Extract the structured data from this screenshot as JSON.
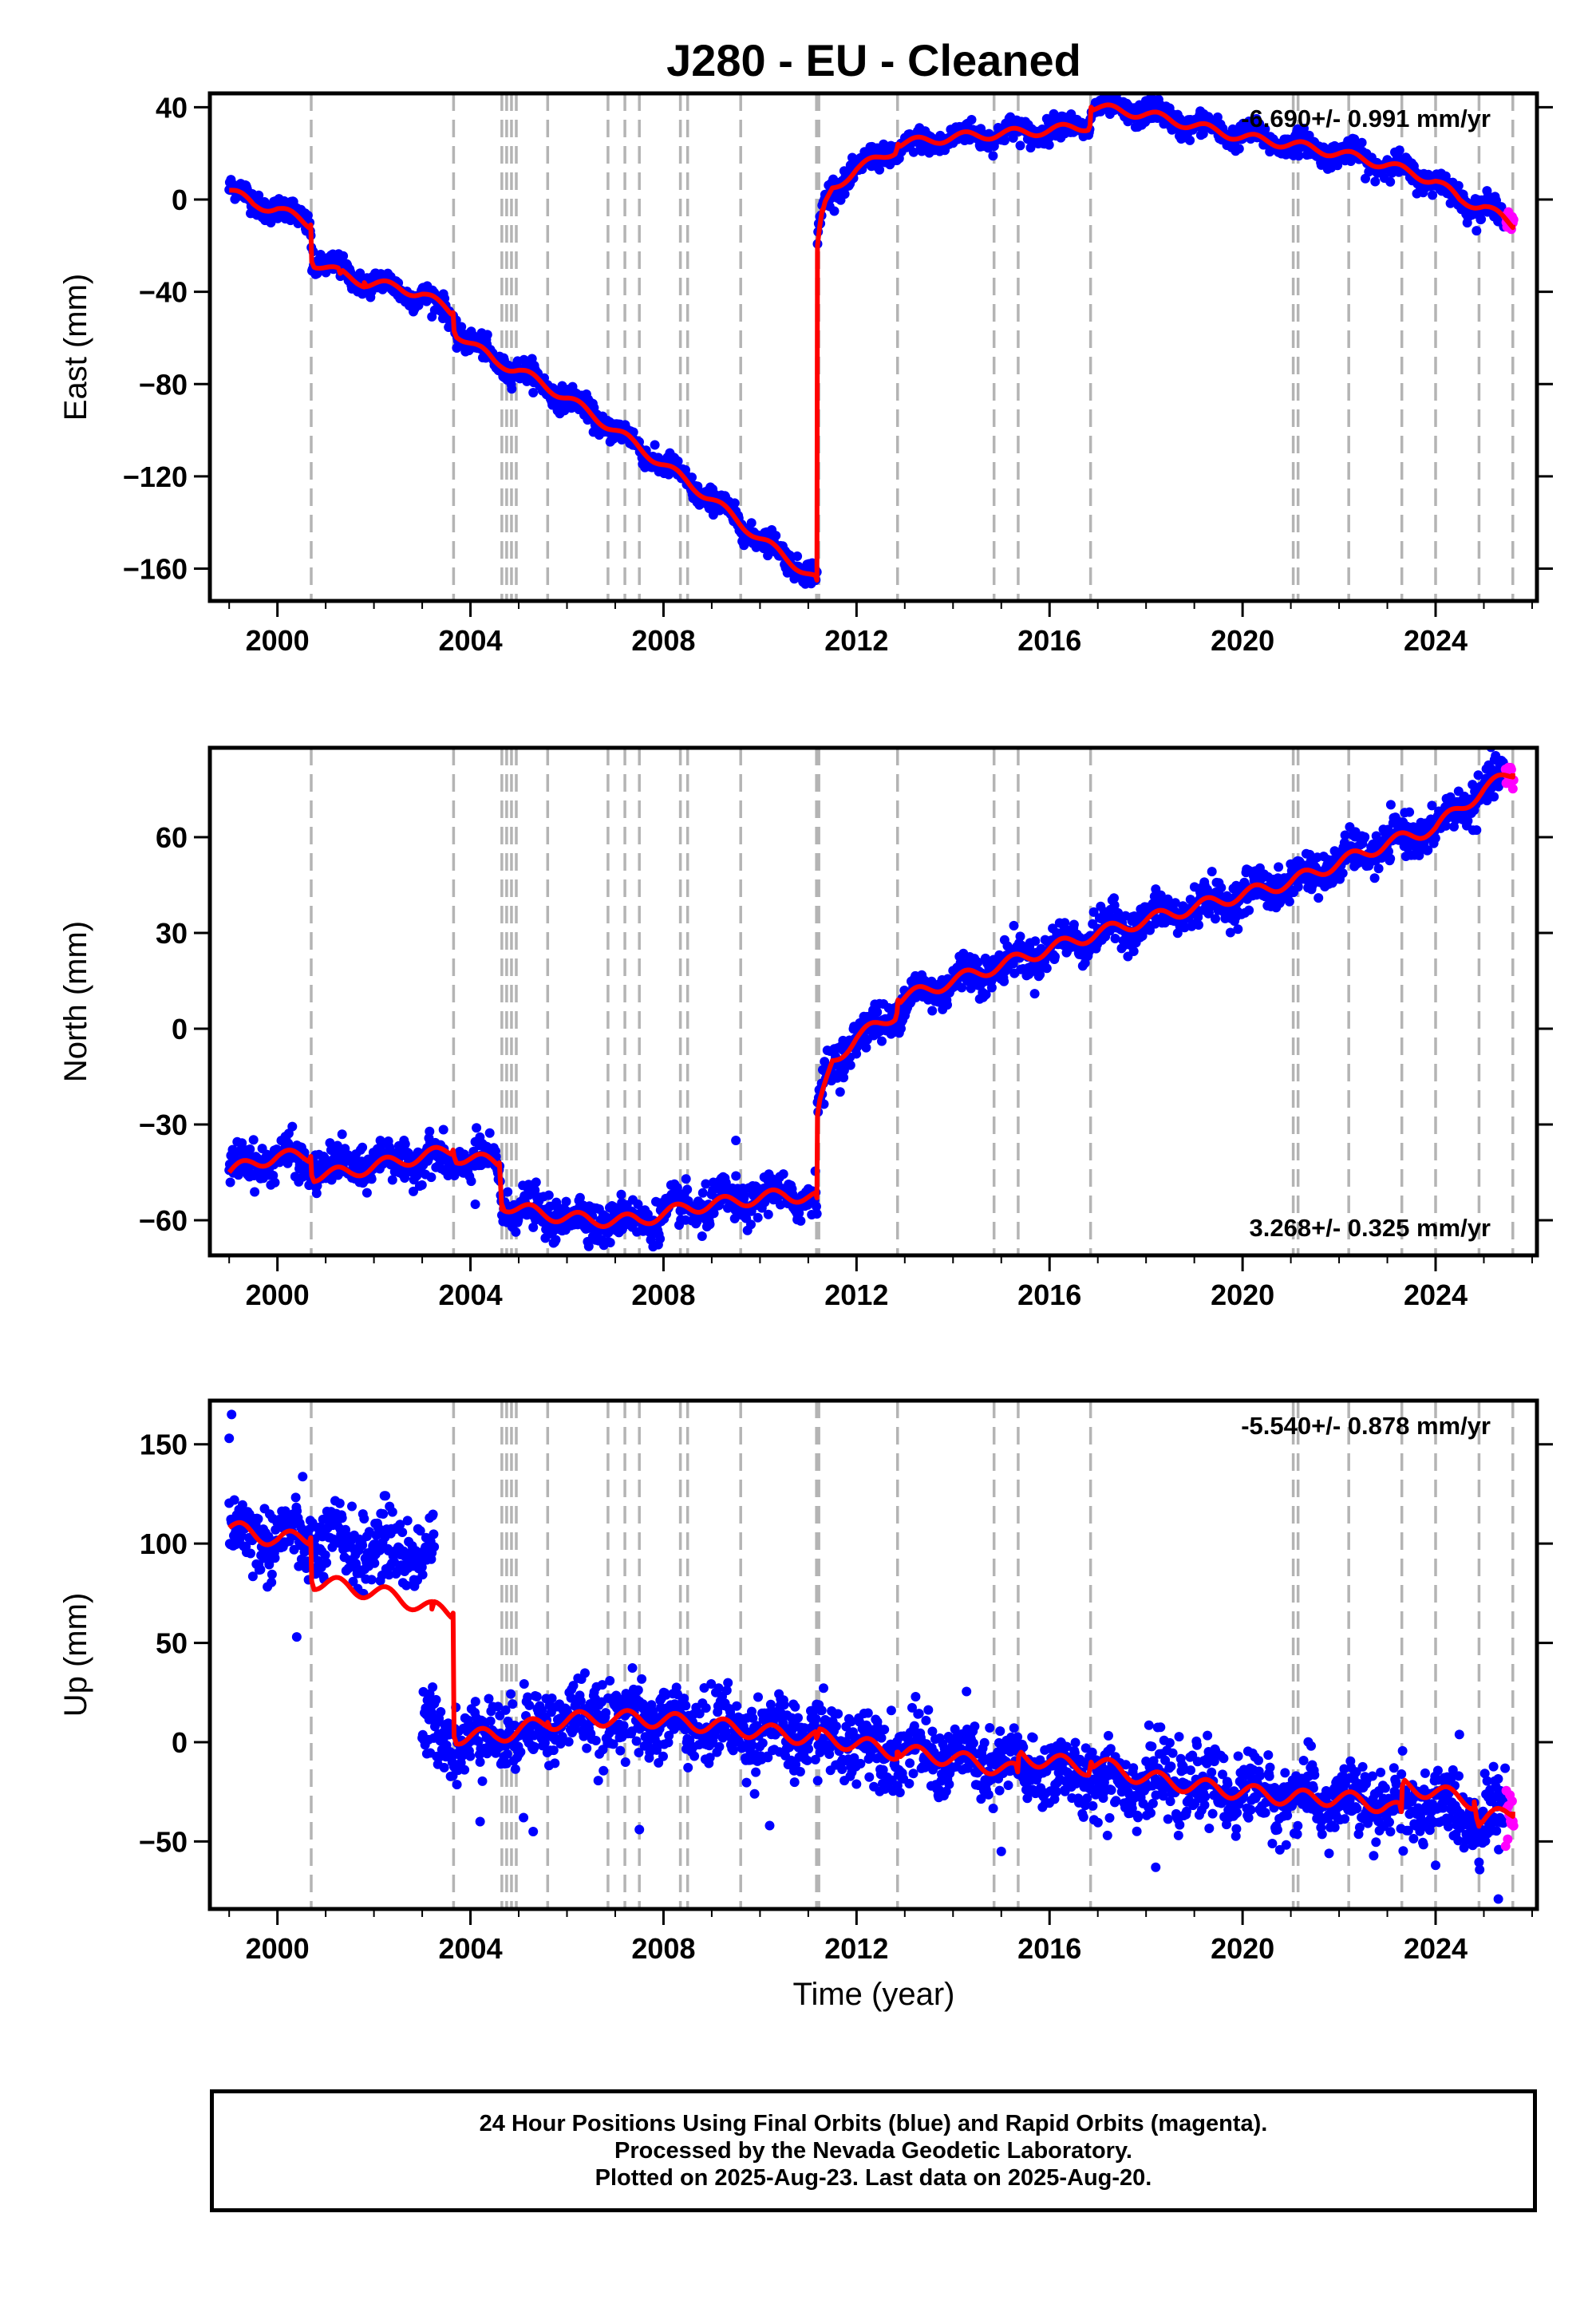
{
  "title": "J280  - EU - Cleaned",
  "xlabel": "Time (year)",
  "footer": {
    "line1": "24 Hour Positions Using Final Orbits (blue) and Rapid Orbits (magenta).",
    "line2": "Processed by the Nevada Geodetic Laboratory.",
    "line3": "Plotted on 2025-Aug-23. Last data on 2025-Aug-20."
  },
  "colors": {
    "final": "#0000ff",
    "rapid": "#ff00ff",
    "model": "#ff0000",
    "breaks": "#b4b4b4",
    "axes": "#000000"
  },
  "chart_data": [
    {
      "type": "scatter",
      "component": "east",
      "ylabel": "East (mm)",
      "rate": "-6.690+/- 0.991 mm/yr",
      "rate_position": "top-right",
      "xlim": [
        1998.6,
        2026.1
      ],
      "ylim": [
        -174,
        46
      ],
      "x_ticks": [
        2000,
        2004,
        2008,
        2012,
        2016,
        2020,
        2024
      ],
      "y_ticks": [
        -160,
        -120,
        -80,
        -40,
        0,
        40
      ],
      "breaks": [
        2000.7,
        2003.65,
        2004.65,
        2004.75,
        2004.85,
        2004.95,
        2005.6,
        2006.85,
        2007.2,
        2007.5,
        2008.35,
        2008.5,
        2009.6,
        2011.17,
        2011.22,
        2012.85,
        2014.85,
        2015.35,
        2016.85,
        2021.05,
        2021.15,
        2022.2,
        2023.3,
        2024.0,
        2024.9,
        2025.6
      ],
      "anchors": [
        [
          1999.0,
          5
        ],
        [
          1999.5,
          -1
        ],
        [
          2000.0,
          -4
        ],
        [
          2000.69,
          -10
        ],
        [
          2000.71,
          -26
        ],
        [
          2001.5,
          -33
        ],
        [
          2002.5,
          -39
        ],
        [
          2003.0,
          -42
        ],
        [
          2003.64,
          -50
        ],
        [
          2003.66,
          -56
        ],
        [
          2004.5,
          -70
        ],
        [
          2005.0,
          -74
        ],
        [
          2006.0,
          -86
        ],
        [
          2007.0,
          -100
        ],
        [
          2008.0,
          -115
        ],
        [
          2009.0,
          -130
        ],
        [
          2010.0,
          -147
        ],
        [
          2011.18,
          -164
        ],
        [
          2011.19,
          -20
        ],
        [
          2011.3,
          -5
        ],
        [
          2011.5,
          5
        ],
        [
          2012.0,
          13
        ],
        [
          2012.84,
          22
        ],
        [
          2012.86,
          22
        ],
        [
          2014.0,
          27
        ],
        [
          2016.0,
          30
        ],
        [
          2016.84,
          33
        ],
        [
          2016.86,
          40
        ],
        [
          2018.0,
          38
        ],
        [
          2019.0,
          32
        ],
        [
          2020.0,
          28
        ],
        [
          2021.0,
          24
        ],
        [
          2022.0,
          20
        ],
        [
          2023.0,
          15
        ],
        [
          2024.0,
          8
        ],
        [
          2024.5,
          0
        ],
        [
          2025.0,
          -3
        ],
        [
          2025.6,
          -10
        ]
      ],
      "wiggle": 2.5,
      "outliers": [],
      "scatter_sigma": 2.5,
      "model": [
        [
          1999.0,
          4
        ],
        [
          1999.5,
          -2
        ],
        [
          2000.0,
          -4
        ],
        [
          2000.69,
          -11
        ],
        [
          2000.71,
          -27
        ],
        [
          2001.3,
          -32
        ],
        [
          2001.8,
          -36
        ],
        [
          2002.5,
          -38
        ],
        [
          2003.0,
          -41
        ],
        [
          2003.64,
          -49
        ],
        [
          2003.66,
          -57
        ],
        [
          2004.5,
          -70
        ],
        [
          2005.0,
          -74
        ],
        [
          2006.0,
          -86
        ],
        [
          2007.0,
          -100
        ],
        [
          2008.0,
          -115
        ],
        [
          2009.0,
          -130
        ],
        [
          2010.0,
          -147
        ],
        [
          2011.18,
          -165
        ],
        [
          2011.19,
          -20
        ],
        [
          2011.3,
          -5
        ],
        [
          2011.5,
          5
        ],
        [
          2012.0,
          13
        ],
        [
          2012.84,
          22
        ],
        [
          2012.86,
          24
        ],
        [
          2014.0,
          27
        ],
        [
          2016.0,
          30
        ],
        [
          2016.84,
          32
        ],
        [
          2016.86,
          40
        ],
        [
          2018.0,
          37
        ],
        [
          2019.0,
          32
        ],
        [
          2020.0,
          27
        ],
        [
          2021.0,
          24
        ],
        [
          2022.0,
          20
        ],
        [
          2023.0,
          15
        ],
        [
          2024.0,
          8
        ],
        [
          2024.5,
          0
        ],
        [
          2025.0,
          -3
        ],
        [
          2025.6,
          -11
        ]
      ],
      "rapid_range": [
        2025.45,
        2025.62
      ]
    },
    {
      "type": "scatter",
      "component": "north",
      "ylabel": "North (mm)",
      "rate": "3.268+/- 0.325 mm/yr",
      "rate_position": "bottom-right",
      "xlim": [
        1998.6,
        2026.1
      ],
      "ylim": [
        -71,
        88
      ],
      "x_ticks": [
        2000,
        2004,
        2008,
        2012,
        2016,
        2020,
        2024
      ],
      "y_ticks": [
        -60,
        -30,
        0,
        30,
        60
      ],
      "breaks": [
        2000.7,
        2003.65,
        2004.65,
        2004.75,
        2004.85,
        2004.95,
        2005.6,
        2006.85,
        2007.2,
        2007.5,
        2008.35,
        2008.5,
        2009.6,
        2011.17,
        2011.22,
        2012.85,
        2014.85,
        2015.35,
        2016.85,
        2021.05,
        2021.15,
        2022.2,
        2023.3,
        2024.0,
        2024.9,
        2025.6
      ],
      "anchors": [
        [
          1999.0,
          -44
        ],
        [
          2000.0,
          -40
        ],
        [
          2001.0,
          -44
        ],
        [
          2002.0,
          -42
        ],
        [
          2003.0,
          -41
        ],
        [
          2004.6,
          -42
        ],
        [
          2004.65,
          -55
        ],
        [
          2005.5,
          -58
        ],
        [
          2006.5,
          -60
        ],
        [
          2007.5,
          -60
        ],
        [
          2008.5,
          -56
        ],
        [
          2009.5,
          -54
        ],
        [
          2010.5,
          -52
        ],
        [
          2011.18,
          -53
        ],
        [
          2011.19,
          -25
        ],
        [
          2011.5,
          -10
        ],
        [
          2012.0,
          -3
        ],
        [
          2012.84,
          5
        ],
        [
          2012.86,
          8
        ],
        [
          2014.0,
          15
        ],
        [
          2015.0,
          20
        ],
        [
          2016.0,
          25
        ],
        [
          2017.0,
          30
        ],
        [
          2018.0,
          34
        ],
        [
          2019.0,
          38
        ],
        [
          2020.0,
          42
        ],
        [
          2021.0,
          46
        ],
        [
          2022.0,
          52
        ],
        [
          2023.0,
          58
        ],
        [
          2024.0,
          63
        ],
        [
          2025.0,
          75
        ],
        [
          2025.6,
          80
        ]
      ],
      "wiggle": 2.5,
      "outliers": [
        [
          2009.5,
          -35
        ],
        [
          2004.1,
          -55
        ],
        [
          2008.8,
          -65
        ]
      ],
      "scatter_sigma": 3,
      "model": [
        [
          1999.0,
          -45
        ],
        [
          1999.5,
          -42
        ],
        [
          2000.0,
          -40
        ],
        [
          2000.69,
          -40
        ],
        [
          2000.71,
          -46
        ],
        [
          2001.5,
          -45
        ],
        [
          2002.0,
          -43
        ],
        [
          2003.0,
          -40
        ],
        [
          2003.64,
          -38
        ],
        [
          2003.66,
          -40
        ],
        [
          2004.6,
          -42
        ],
        [
          2004.65,
          -55
        ],
        [
          2005.5,
          -58
        ],
        [
          2006.5,
          -60
        ],
        [
          2007.5,
          -60
        ],
        [
          2008.5,
          -56
        ],
        [
          2009.5,
          -54
        ],
        [
          2010.5,
          -52
        ],
        [
          2011.18,
          -53
        ],
        [
          2011.19,
          -27
        ],
        [
          2011.5,
          -10
        ],
        [
          2012.0,
          -3
        ],
        [
          2012.84,
          5
        ],
        [
          2012.86,
          9
        ],
        [
          2014.0,
          15
        ],
        [
          2015.0,
          20
        ],
        [
          2016.0,
          25
        ],
        [
          2017.0,
          30
        ],
        [
          2018.0,
          34
        ],
        [
          2019.0,
          38
        ],
        [
          2020.0,
          42
        ],
        [
          2021.0,
          46
        ],
        [
          2022.0,
          52
        ],
        [
          2023.0,
          58
        ],
        [
          2024.0,
          63
        ],
        [
          2025.0,
          75
        ],
        [
          2025.6,
          80
        ]
      ],
      "rapid_range": [
        2025.45,
        2025.62
      ]
    },
    {
      "type": "scatter",
      "component": "up",
      "ylabel": "Up (mm)",
      "rate": "-5.540+/- 0.878 mm/yr",
      "rate_position": "top-right",
      "xlim": [
        1998.6,
        2026.1
      ],
      "ylim": [
        -84,
        172
      ],
      "x_ticks": [
        2000,
        2004,
        2008,
        2012,
        2016,
        2020,
        2024
      ],
      "y_ticks": [
        -50,
        0,
        50,
        100,
        150
      ],
      "breaks": [
        2000.7,
        2003.65,
        2004.65,
        2004.75,
        2004.85,
        2004.95,
        2005.6,
        2006.85,
        2007.2,
        2007.5,
        2008.35,
        2008.5,
        2009.6,
        2011.17,
        2011.22,
        2012.85,
        2014.85,
        2015.35,
        2016.85,
        2021.05,
        2021.15,
        2022.2,
        2023.3,
        2024.0,
        2024.9,
        2025.6
      ],
      "segments": [
        [
          1999.0,
          2003.25
        ],
        [
          2003.0,
          2025.62
        ]
      ],
      "anchors": [
        [
          1999.0,
          105
        ],
        [
          2000.0,
          103
        ],
        [
          2000.69,
          102
        ],
        [
          2000.71,
          100
        ],
        [
          2002.0,
          98
        ],
        [
          2003.0,
          96
        ],
        [
          2003.2,
          5
        ],
        [
          2003.64,
          2
        ],
        [
          2004.0,
          2
        ],
        [
          2005.0,
          6
        ],
        [
          2006.0,
          12
        ],
        [
          2007.0,
          12
        ],
        [
          2008.0,
          10
        ],
        [
          2009.0,
          8
        ],
        [
          2010.0,
          5
        ],
        [
          2011.0,
          2
        ],
        [
          2012.0,
          0
        ],
        [
          2013.0,
          -5
        ],
        [
          2014.0,
          -8
        ],
        [
          2015.0,
          -12
        ],
        [
          2016.0,
          -15
        ],
        [
          2017.0,
          -18
        ],
        [
          2018.0,
          -20
        ],
        [
          2019.0,
          -22
        ],
        [
          2020.0,
          -25
        ],
        [
          2021.0,
          -28
        ],
        [
          2022.0,
          -30
        ],
        [
          2023.0,
          -32
        ],
        [
          2024.0,
          -32
        ],
        [
          2025.0,
          -38
        ],
        [
          2025.6,
          -35
        ]
      ],
      "wiggle": 5,
      "outliers": [
        [
          1999.05,
          165
        ],
        [
          1999.0,
          153
        ],
        [
          2000.4,
          53
        ],
        [
          2004.2,
          -40
        ],
        [
          2005.1,
          -38
        ],
        [
          2005.3,
          -45
        ],
        [
          2007.5,
          -44
        ],
        [
          2010.2,
          -42
        ],
        [
          2015.0,
          -55
        ],
        [
          2017.2,
          -47
        ],
        [
          2018.2,
          -63
        ],
        [
          2025.3,
          -79
        ],
        [
          2024.0,
          -62
        ]
      ],
      "scatter_sigma": 9,
      "model": [
        [
          1999.0,
          108
        ],
        [
          1999.5,
          105
        ],
        [
          2000.0,
          102
        ],
        [
          2000.69,
          103
        ],
        [
          2000.71,
          81
        ],
        [
          2001.5,
          78
        ],
        [
          2002.5,
          73
        ],
        [
          2003.2,
          67
        ],
        [
          2003.64,
          65
        ],
        [
          2003.66,
          3
        ],
        [
          2004.5,
          3
        ],
        [
          2005.6,
          10
        ],
        [
          2006.5,
          12
        ],
        [
          2007.5,
          12
        ],
        [
          2008.5,
          10
        ],
        [
          2009.5,
          7
        ],
        [
          2010.5,
          4
        ],
        [
          2011.17,
          2
        ],
        [
          2011.19,
          3
        ],
        [
          2012.84,
          -5
        ],
        [
          2012.86,
          -5
        ],
        [
          2014.0,
          -8
        ],
        [
          2015.34,
          -15
        ],
        [
          2015.36,
          -7
        ],
        [
          2016.84,
          -13
        ],
        [
          2016.86,
          -10
        ],
        [
          2018.0,
          -18
        ],
        [
          2019.0,
          -22
        ],
        [
          2020.0,
          -25
        ],
        [
          2021.0,
          -28
        ],
        [
          2022.0,
          -28
        ],
        [
          2023.0,
          -32
        ],
        [
          2023.29,
          -35
        ],
        [
          2023.31,
          -22
        ],
        [
          2024.0,
          -25
        ],
        [
          2024.8,
          -30
        ],
        [
          2024.9,
          -40
        ],
        [
          2025.6,
          -35
        ]
      ],
      "rapid_range": [
        2025.45,
        2025.62
      ]
    }
  ]
}
